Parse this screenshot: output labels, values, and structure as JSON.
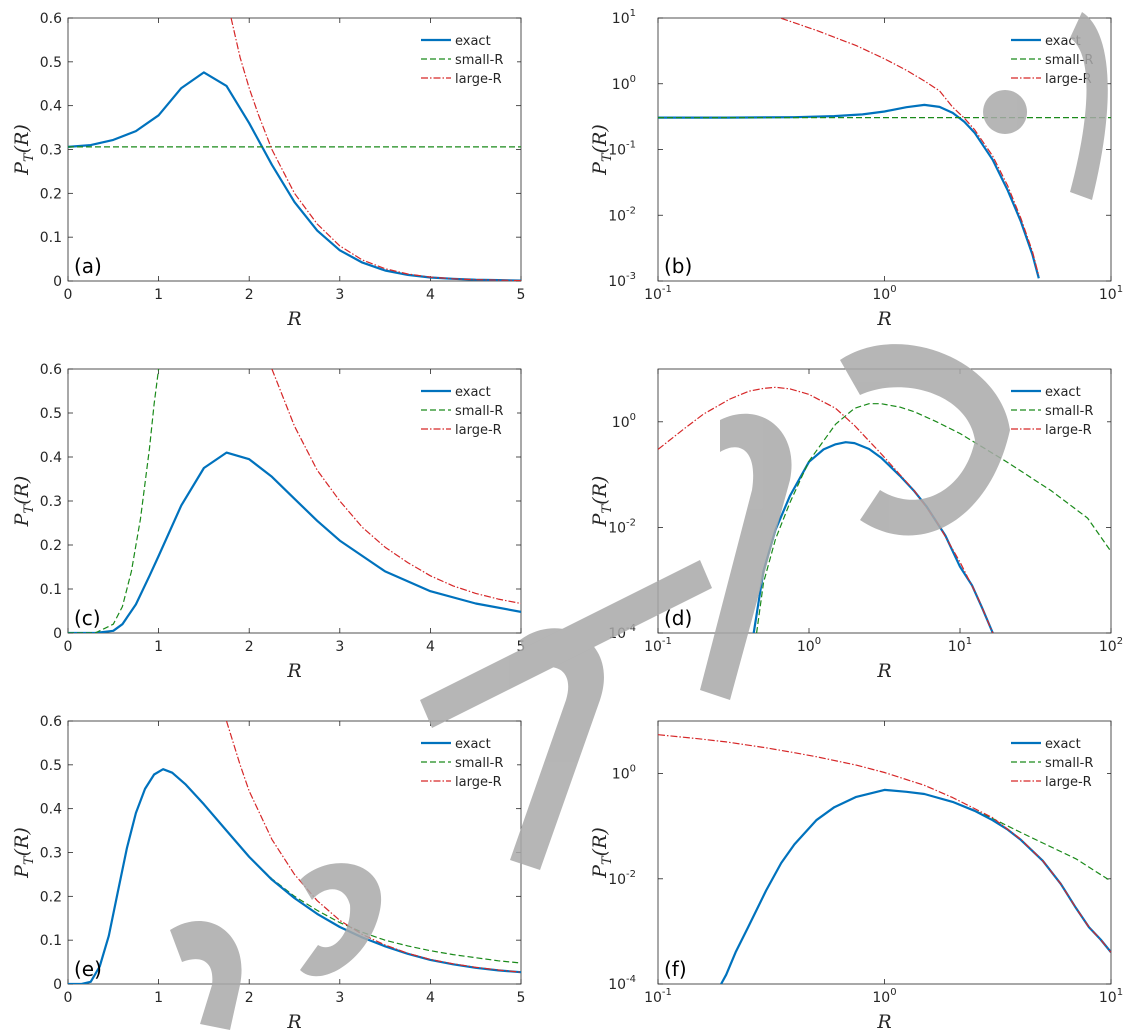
{
  "colors": {
    "exact": "#0072BD",
    "small": "#1a8a1a",
    "large": "#d62728",
    "axis": "#262626",
    "watermark": "#a9a9a9"
  },
  "watermark_text": "Accepted Manuscript",
  "chart_data": [
    {
      "type": "line",
      "scale": "linear",
      "panel_label": "(a)",
      "xlabel": "R",
      "ylabel": "P_T(R)",
      "xlim": [
        0,
        5
      ],
      "ylim": [
        0,
        0.6
      ],
      "xticks": [
        0,
        1,
        2,
        3,
        4,
        5
      ],
      "yticks": [
        0,
        0.1,
        0.2,
        0.3,
        0.4,
        0.5,
        0.6
      ],
      "legend": [
        "exact",
        "small-R",
        "large-R"
      ],
      "legend_position": "top-right",
      "series": [
        {
          "key": "exact",
          "x": [
            0,
            0.25,
            0.5,
            0.75,
            1.0,
            1.25,
            1.5,
            1.75,
            2.0,
            2.25,
            2.5,
            2.75,
            3.0,
            3.25,
            3.5,
            3.75,
            4.0,
            4.25,
            4.5,
            4.75,
            5.0
          ],
          "y": [
            0.306,
            0.31,
            0.322,
            0.342,
            0.378,
            0.44,
            0.476,
            0.445,
            0.36,
            0.265,
            0.18,
            0.115,
            0.07,
            0.042,
            0.024,
            0.014,
            0.008,
            0.005,
            0.003,
            0.002,
            0.001
          ]
        },
        {
          "key": "small",
          "x": [
            0,
            5
          ],
          "y": [
            0.306,
            0.306
          ]
        },
        {
          "key": "large",
          "x": [
            1.8,
            1.9,
            2.0,
            2.1,
            2.25,
            2.5,
            2.75,
            3.0,
            3.25,
            3.5,
            3.75,
            4.0,
            4.25,
            4.5,
            4.75,
            5.0
          ],
          "y": [
            0.6,
            0.51,
            0.44,
            0.38,
            0.3,
            0.2,
            0.13,
            0.08,
            0.048,
            0.028,
            0.016,
            0.009,
            0.005,
            0.003,
            0.002,
            0.001
          ]
        }
      ]
    },
    {
      "type": "line",
      "scale": "loglog",
      "panel_label": "(b)",
      "xlabel": "R",
      "ylabel": "P_T(R)",
      "xlim": [
        0.1,
        10
      ],
      "ylim": [
        0.001,
        10
      ],
      "xticks": [
        0.1,
        1,
        10
      ],
      "xtick_labels": [
        "10",
        "10",
        "10"
      ],
      "xtick_exp": [
        "-1",
        "0",
        "1"
      ],
      "yticks": [
        0.001,
        0.01,
        0.1,
        1,
        10
      ],
      "ytick_labels": [
        "10",
        "10",
        "10",
        "10",
        "10"
      ],
      "ytick_exp": [
        "-3",
        "-2",
        "-1",
        "0",
        "1"
      ],
      "legend": [
        "exact",
        "small-R",
        "large-R"
      ],
      "legend_position": "top-right",
      "series": [
        {
          "key": "exact",
          "x": [
            0.1,
            0.2,
            0.4,
            0.6,
            0.8,
            1.0,
            1.25,
            1.5,
            1.75,
            2.0,
            2.25,
            2.5,
            3.0,
            3.5,
            4.0,
            4.5,
            4.8
          ],
          "y": [
            0.306,
            0.306,
            0.31,
            0.322,
            0.342,
            0.378,
            0.44,
            0.476,
            0.445,
            0.36,
            0.265,
            0.18,
            0.07,
            0.024,
            0.008,
            0.0025,
            0.0011
          ]
        },
        {
          "key": "small",
          "x": [
            0.1,
            10
          ],
          "y": [
            0.306,
            0.306
          ]
        },
        {
          "key": "large",
          "x": [
            0.35,
            0.5,
            0.75,
            1.0,
            1.25,
            1.5,
            1.75,
            2.0,
            2.25,
            2.5,
            3.0,
            3.5,
            4.0,
            4.5,
            4.8
          ],
          "y": [
            9.9,
            6.5,
            3.8,
            2.4,
            1.6,
            1.1,
            0.78,
            0.44,
            0.3,
            0.2,
            0.08,
            0.028,
            0.009,
            0.0028,
            0.0012
          ]
        }
      ]
    },
    {
      "type": "line",
      "scale": "linear",
      "panel_label": "(c)",
      "xlabel": "R",
      "ylabel": "P_T(R)",
      "xlim": [
        0,
        5
      ],
      "ylim": [
        0,
        0.6
      ],
      "xticks": [
        0,
        1,
        2,
        3,
        4,
        5
      ],
      "yticks": [
        0,
        0.1,
        0.2,
        0.3,
        0.4,
        0.5,
        0.6
      ],
      "legend": [
        "exact",
        "small-R",
        "large-R"
      ],
      "legend_position": "top-right",
      "series": [
        {
          "key": "exact",
          "x": [
            0,
            0.3,
            0.5,
            0.6,
            0.75,
            0.9,
            1.0,
            1.25,
            1.5,
            1.75,
            2.0,
            2.25,
            2.5,
            2.75,
            3.0,
            3.5,
            4.0,
            4.5,
            5.0
          ],
          "y": [
            0,
            0,
            0.005,
            0.02,
            0.065,
            0.13,
            0.175,
            0.29,
            0.375,
            0.41,
            0.395,
            0.355,
            0.305,
            0.255,
            0.21,
            0.14,
            0.095,
            0.067,
            0.048
          ]
        },
        {
          "key": "small",
          "x": [
            0,
            0.3,
            0.5,
            0.6,
            0.7,
            0.8,
            0.9,
            0.95,
            1.0
          ],
          "y": [
            0,
            0,
            0.02,
            0.06,
            0.14,
            0.26,
            0.42,
            0.52,
            0.6
          ]
        },
        {
          "key": "large",
          "x": [
            2.25,
            2.5,
            2.75,
            3.0,
            3.25,
            3.5,
            3.75,
            4.0,
            4.25,
            4.5,
            4.75,
            5.0
          ],
          "y": [
            0.6,
            0.47,
            0.37,
            0.3,
            0.24,
            0.195,
            0.16,
            0.13,
            0.107,
            0.09,
            0.077,
            0.067
          ]
        }
      ]
    },
    {
      "type": "line",
      "scale": "loglog",
      "panel_label": "(d)",
      "xlabel": "R",
      "ylabel": "P_T(R)",
      "xlim": [
        0.1,
        100
      ],
      "ylim": [
        0.0001,
        10
      ],
      "xticks": [
        0.1,
        1,
        10,
        100
      ],
      "xtick_labels": [
        "10",
        "10",
        "10",
        "10"
      ],
      "xtick_exp": [
        "-1",
        "0",
        "1",
        "2"
      ],
      "yticks": [
        0.0001,
        0.01,
        1
      ],
      "ytick_labels": [
        "10",
        "10",
        "10"
      ],
      "ytick_exp": [
        "-4",
        "-2",
        "0"
      ],
      "legend": [
        "exact",
        "small-R",
        "large-R"
      ],
      "legend_position": "top-right",
      "series": [
        {
          "key": "exact",
          "x": [
            0.43,
            0.5,
            0.6,
            0.75,
            1.0,
            1.25,
            1.5,
            1.75,
            2.0,
            2.5,
            3.0,
            4.0,
            5.0,
            6.0,
            8.0,
            10.0,
            12.0,
            14.0,
            16.5
          ],
          "y": [
            0.0001,
            0.0015,
            0.009,
            0.04,
            0.175,
            0.3,
            0.375,
            0.41,
            0.395,
            0.305,
            0.21,
            0.095,
            0.048,
            0.025,
            0.007,
            0.0018,
            0.0008,
            0.0003,
            0.0001
          ]
        },
        {
          "key": "small",
          "x": [
            0.45,
            0.5,
            0.6,
            0.75,
            1.0,
            1.5,
            2.0,
            2.5,
            3.0,
            4.0,
            5.0,
            7.0,
            10.0,
            20.0,
            40.0,
            70.0,
            100.0
          ],
          "y": [
            0.0001,
            0.0009,
            0.006,
            0.03,
            0.18,
            0.9,
            1.8,
            2.2,
            2.2,
            1.9,
            1.55,
            1.0,
            0.6,
            0.18,
            0.05,
            0.015,
            0.0035
          ]
        },
        {
          "key": "large",
          "x": [
            0.1,
            0.15,
            0.2,
            0.3,
            0.4,
            0.5,
            0.6,
            0.75,
            1.0,
            1.5,
            2.0,
            3.0,
            4.0,
            5.0,
            7.0,
            10.0,
            13.0,
            16.5
          ],
          "y": [
            0.3,
            0.75,
            1.4,
            2.7,
            3.8,
            4.3,
            4.5,
            4.2,
            3.3,
            1.8,
            0.85,
            0.25,
            0.1,
            0.049,
            0.013,
            0.0022,
            0.0005,
            0.0001
          ]
        }
      ]
    },
    {
      "type": "line",
      "scale": "linear",
      "panel_label": "(e)",
      "xlabel": "R",
      "ylabel": "P_T(R)",
      "xlim": [
        0,
        5
      ],
      "ylim": [
        0,
        0.6
      ],
      "xticks": [
        0,
        1,
        2,
        3,
        4,
        5
      ],
      "yticks": [
        0,
        0.1,
        0.2,
        0.3,
        0.4,
        0.5,
        0.6
      ],
      "legend": [
        "exact",
        "small-R",
        "large-R"
      ],
      "legend_position": "top-right",
      "series": [
        {
          "key": "small",
          "x": [
            0,
            0.15,
            0.25,
            0.35,
            0.45,
            0.55,
            0.65,
            0.75,
            0.85,
            0.95,
            1.05,
            1.15,
            1.3,
            1.5,
            1.75,
            2.0,
            2.25,
            2.5,
            2.75,
            3.0,
            3.25,
            3.5,
            3.75,
            4.0,
            4.25,
            4.5,
            4.75,
            5.0
          ],
          "y": [
            0,
            0,
            0.005,
            0.04,
            0.11,
            0.21,
            0.31,
            0.39,
            0.445,
            0.478,
            0.49,
            0.482,
            0.455,
            0.41,
            0.35,
            0.29,
            0.24,
            0.2,
            0.168,
            0.14,
            0.118,
            0.1,
            0.087,
            0.076,
            0.067,
            0.06,
            0.053,
            0.048
          ]
        },
        {
          "key": "exact",
          "x": [
            0,
            0.15,
            0.25,
            0.35,
            0.45,
            0.55,
            0.65,
            0.75,
            0.85,
            0.95,
            1.05,
            1.15,
            1.3,
            1.5,
            1.75,
            2.0,
            2.25,
            2.5,
            2.75,
            3.0,
            3.25,
            3.5,
            3.75,
            4.0,
            4.25,
            4.5,
            4.75,
            5.0
          ],
          "y": [
            0,
            0,
            0.005,
            0.04,
            0.11,
            0.21,
            0.31,
            0.39,
            0.445,
            0.478,
            0.49,
            0.482,
            0.455,
            0.41,
            0.35,
            0.29,
            0.238,
            0.196,
            0.16,
            0.13,
            0.106,
            0.086,
            0.069,
            0.055,
            0.045,
            0.037,
            0.031,
            0.027
          ]
        },
        {
          "key": "large",
          "x": [
            1.75,
            1.9,
            2.0,
            2.25,
            2.5,
            2.75,
            3.0,
            3.25,
            3.5,
            3.75,
            4.0,
            4.25,
            4.5,
            4.75,
            5.0
          ],
          "y": [
            0.6,
            0.5,
            0.44,
            0.33,
            0.25,
            0.19,
            0.145,
            0.113,
            0.089,
            0.07,
            0.056,
            0.046,
            0.038,
            0.032,
            0.027
          ]
        }
      ]
    },
    {
      "type": "line",
      "scale": "loglog",
      "panel_label": "(f)",
      "xlabel": "R",
      "ylabel": "P_T(R)",
      "xlim": [
        0.1,
        10
      ],
      "ylim": [
        0.0001,
        10
      ],
      "xticks": [
        0.1,
        1,
        10
      ],
      "xtick_labels": [
        "10",
        "10",
        "10"
      ],
      "xtick_exp": [
        "-1",
        "0",
        "1"
      ],
      "yticks": [
        0.0001,
        0.01,
        1
      ],
      "ytick_labels": [
        "10",
        "10",
        "10"
      ],
      "ytick_exp": [
        "-4",
        "-2",
        "0"
      ],
      "legend": [
        "exact",
        "small-R",
        "large-R"
      ],
      "legend_position": "top-right",
      "series": [
        {
          "key": "small",
          "x": [
            0.19,
            0.2,
            0.22,
            0.25,
            0.3,
            0.35,
            0.4,
            0.5,
            0.6,
            0.75,
            1.0,
            1.25,
            1.5,
            2.0,
            2.5,
            3.0,
            4.0,
            5.0,
            7.0,
            10.0
          ],
          "y": [
            0.0001,
            0.00015,
            0.0004,
            0.0012,
            0.006,
            0.02,
            0.045,
            0.13,
            0.23,
            0.36,
            0.49,
            0.45,
            0.41,
            0.29,
            0.2,
            0.14,
            0.076,
            0.048,
            0.024,
            0.009
          ]
        },
        {
          "key": "exact",
          "x": [
            0.19,
            0.2,
            0.22,
            0.25,
            0.3,
            0.35,
            0.4,
            0.5,
            0.6,
            0.75,
            1.0,
            1.25,
            1.5,
            2.0,
            2.5,
            3.0,
            3.5,
            4.0,
            5.0,
            6.0,
            7.0,
            8.0,
            9.0,
            10.0
          ],
          "y": [
            0.0001,
            0.00015,
            0.0004,
            0.0012,
            0.006,
            0.02,
            0.045,
            0.13,
            0.23,
            0.36,
            0.49,
            0.45,
            0.41,
            0.29,
            0.196,
            0.13,
            0.086,
            0.055,
            0.022,
            0.008,
            0.0028,
            0.0012,
            0.0007,
            0.0004
          ]
        },
        {
          "key": "large",
          "x": [
            0.1,
            0.15,
            0.2,
            0.3,
            0.4,
            0.5,
            0.75,
            1.0,
            1.5,
            2.0,
            3.0,
            4.0,
            5.0,
            6.0,
            7.0,
            8.0,
            9.0,
            10.0
          ],
          "y": [
            5.5,
            4.6,
            4.0,
            3.1,
            2.5,
            2.1,
            1.45,
            1.05,
            0.6,
            0.35,
            0.145,
            0.056,
            0.022,
            0.008,
            0.0028,
            0.0012,
            0.0007,
            0.0004
          ]
        }
      ]
    }
  ]
}
